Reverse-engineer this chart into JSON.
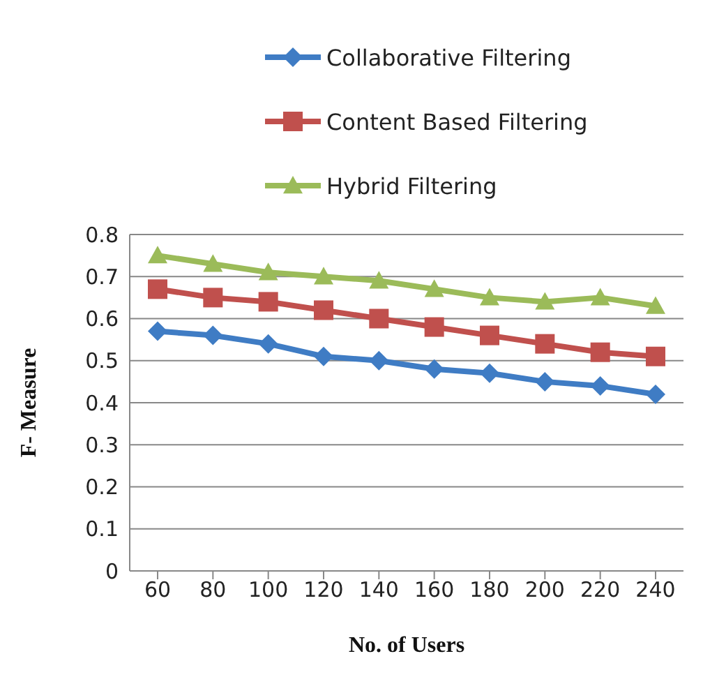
{
  "chart_data": {
    "type": "line",
    "xlabel": "No. of Users",
    "ylabel": "F- Measure",
    "categories": [
      "60",
      "80",
      "100",
      "120",
      "140",
      "160",
      "180",
      "200",
      "220",
      "240"
    ],
    "series": [
      {
        "name": "Collaborative Filtering",
        "color": "#3f7cc4",
        "marker": "diamond",
        "values": [
          0.57,
          0.56,
          0.54,
          0.51,
          0.5,
          0.48,
          0.47,
          0.45,
          0.44,
          0.42
        ]
      },
      {
        "name": "Content Based Filtering",
        "color": "#c0504d",
        "marker": "square",
        "values": [
          0.67,
          0.65,
          0.64,
          0.62,
          0.6,
          0.58,
          0.56,
          0.54,
          0.52,
          0.51
        ]
      },
      {
        "name": "Hybrid Filtering",
        "color": "#9bbb59",
        "marker": "triangle",
        "values": [
          0.75,
          0.73,
          0.71,
          0.7,
          0.69,
          0.67,
          0.65,
          0.64,
          0.65,
          0.63
        ]
      }
    ],
    "ylim": [
      0,
      0.8
    ],
    "yticks": [
      0,
      0.1,
      0.2,
      0.3,
      0.4,
      0.5,
      0.6,
      0.7,
      0.8
    ],
    "grid": "y",
    "legend": "top"
  }
}
